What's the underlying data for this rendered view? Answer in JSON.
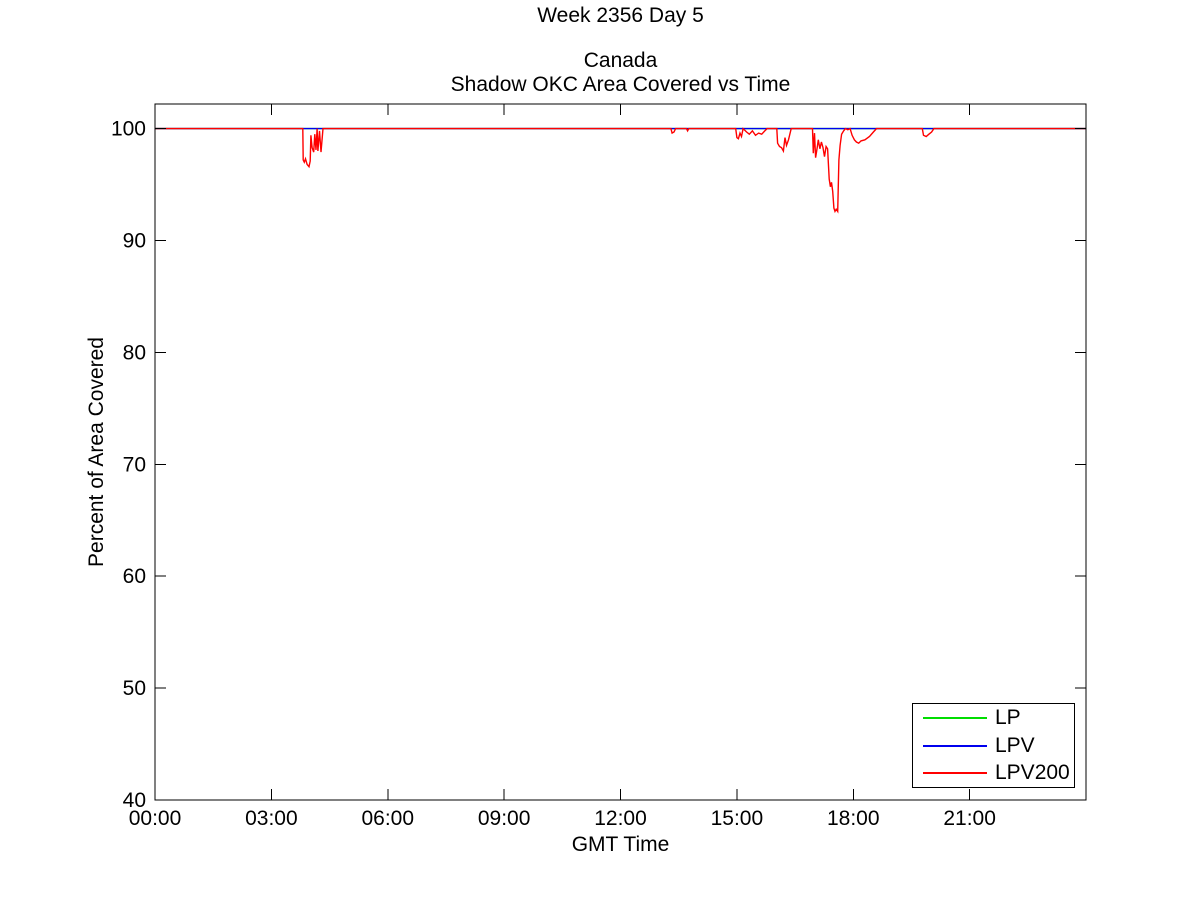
{
  "page": {
    "figure_title": "Week 2356 Day 5"
  },
  "chart_data": {
    "type": "line",
    "title": "Canada",
    "subtitle": "Shadow OKC Area Covered vs Time",
    "xlabel": "GMT Time",
    "ylabel": "Percent of Area Covered",
    "xlim_hours": [
      0,
      24
    ],
    "ylim": [
      40,
      102.2
    ],
    "grid": false,
    "axis_color": "#000000",
    "x_ticks": [
      {
        "t": 0,
        "label": "00:00"
      },
      {
        "t": 3,
        "label": "03:00"
      },
      {
        "t": 6,
        "label": "06:00"
      },
      {
        "t": 9,
        "label": "09:00"
      },
      {
        "t": 12,
        "label": "12:00"
      },
      {
        "t": 15,
        "label": "15:00"
      },
      {
        "t": 18,
        "label": "18:00"
      },
      {
        "t": 21,
        "label": "21:00"
      }
    ],
    "y_ticks": [
      {
        "v": 40,
        "label": "40"
      },
      {
        "v": 50,
        "label": "50"
      },
      {
        "v": 60,
        "label": "60"
      },
      {
        "v": 70,
        "label": "70"
      },
      {
        "v": 80,
        "label": "80"
      },
      {
        "v": 90,
        "label": "90"
      },
      {
        "v": 100,
        "label": "100"
      }
    ],
    "legend": {
      "position": "bottom-right",
      "entries": [
        {
          "name": "LP",
          "color": "#00dd00"
        },
        {
          "name": "LPV",
          "color": "#0000ee"
        },
        {
          "name": "LPV200",
          "color": "#ff0000"
        }
      ]
    },
    "series": [
      {
        "name": "LP",
        "color": "#00dd00",
        "points": [
          [
            0,
            100
          ],
          [
            24,
            100
          ]
        ]
      },
      {
        "name": "LPV",
        "color": "#0000ee",
        "points": [
          [
            0,
            100
          ],
          [
            24,
            100
          ]
        ]
      },
      {
        "name": "LPV200",
        "color": "#ff0000",
        "points": [
          [
            0,
            100
          ],
          [
            3.81,
            100
          ],
          [
            3.82,
            97.2
          ],
          [
            3.85,
            97.0
          ],
          [
            3.88,
            97.3
          ],
          [
            3.92,
            96.8
          ],
          [
            3.97,
            96.6
          ],
          [
            4.0,
            97.1
          ],
          [
            4.02,
            99.4
          ],
          [
            4.05,
            98.3
          ],
          [
            4.09,
            97.9
          ],
          [
            4.12,
            99.5
          ],
          [
            4.15,
            98.1
          ],
          [
            4.18,
            100
          ],
          [
            4.2,
            98.0
          ],
          [
            4.24,
            99.8
          ],
          [
            4.28,
            97.9
          ],
          [
            4.33,
            100
          ],
          [
            13.3,
            100
          ],
          [
            13.33,
            99.6
          ],
          [
            13.38,
            99.7
          ],
          [
            13.42,
            100
          ],
          [
            13.7,
            100
          ],
          [
            13.73,
            99.8
          ],
          [
            13.76,
            100
          ],
          [
            14.97,
            100
          ],
          [
            15.0,
            99.2
          ],
          [
            15.04,
            99.1
          ],
          [
            15.08,
            99.6
          ],
          [
            15.12,
            99.3
          ],
          [
            15.16,
            100
          ],
          [
            15.25,
            99.7
          ],
          [
            15.32,
            99.5
          ],
          [
            15.4,
            99.8
          ],
          [
            15.48,
            99.4
          ],
          [
            15.56,
            99.6
          ],
          [
            15.64,
            99.5
          ],
          [
            15.72,
            99.8
          ],
          [
            15.78,
            100
          ],
          [
            16.03,
            100
          ],
          [
            16.05,
            98.7
          ],
          [
            16.1,
            98.4
          ],
          [
            16.15,
            98.3
          ],
          [
            16.2,
            98.0
          ],
          [
            16.24,
            99.2
          ],
          [
            16.28,
            98.5
          ],
          [
            16.33,
            99.0
          ],
          [
            16.4,
            100
          ],
          [
            16.95,
            100
          ],
          [
            16.97,
            97.8
          ],
          [
            17.0,
            99.6
          ],
          [
            17.03,
            97.4
          ],
          [
            17.07,
            98.3
          ],
          [
            17.1,
            99.0
          ],
          [
            17.14,
            98.2
          ],
          [
            17.18,
            98.8
          ],
          [
            17.22,
            98.3
          ],
          [
            17.26,
            97.5
          ],
          [
            17.3,
            98.4
          ],
          [
            17.34,
            98.2
          ],
          [
            17.38,
            95.5
          ],
          [
            17.41,
            94.8
          ],
          [
            17.44,
            95.2
          ],
          [
            17.47,
            94.4
          ],
          [
            17.5,
            92.9
          ],
          [
            17.53,
            92.6
          ],
          [
            17.56,
            92.8
          ],
          [
            17.6,
            92.6
          ],
          [
            17.63,
            97.2
          ],
          [
            17.66,
            98.5
          ],
          [
            17.7,
            99.5
          ],
          [
            17.75,
            99.8
          ],
          [
            17.8,
            100
          ],
          [
            17.86,
            99.9
          ],
          [
            17.92,
            100
          ],
          [
            17.97,
            99.4
          ],
          [
            18.03,
            99.0
          ],
          [
            18.08,
            98.8
          ],
          [
            18.14,
            98.7
          ],
          [
            18.2,
            98.9
          ],
          [
            18.3,
            99.0
          ],
          [
            18.42,
            99.3
          ],
          [
            18.52,
            99.7
          ],
          [
            18.6,
            100
          ],
          [
            19.78,
            100
          ],
          [
            19.81,
            99.4
          ],
          [
            19.88,
            99.3
          ],
          [
            19.95,
            99.5
          ],
          [
            20.02,
            99.7
          ],
          [
            20.08,
            100
          ],
          [
            24,
            100
          ]
        ]
      }
    ]
  }
}
